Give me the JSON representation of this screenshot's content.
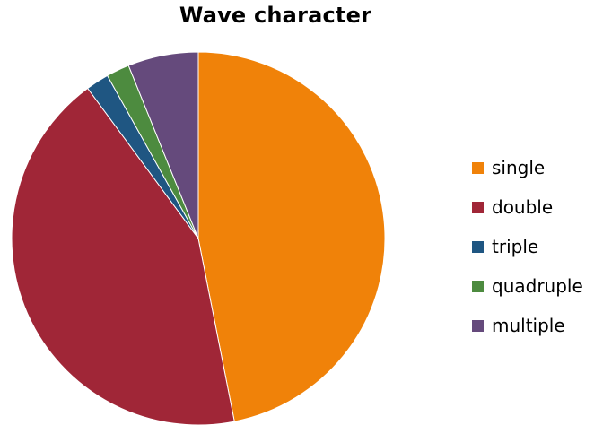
{
  "chart_data": {
    "type": "pie",
    "title": "Wave character",
    "start_angle_deg": 0,
    "direction": "clockwise",
    "legend_position": "right",
    "series": [
      {
        "name": "single",
        "value": 46.9,
        "color": "#F08209"
      },
      {
        "name": "double",
        "value": 43.0,
        "color": "#A02637"
      },
      {
        "name": "triple",
        "value": 2.0,
        "color": "#1F5682"
      },
      {
        "name": "quadruple",
        "value": 2.0,
        "color": "#4D8B3F"
      },
      {
        "name": "multiple",
        "value": 6.1,
        "color": "#654A7C"
      }
    ]
  }
}
